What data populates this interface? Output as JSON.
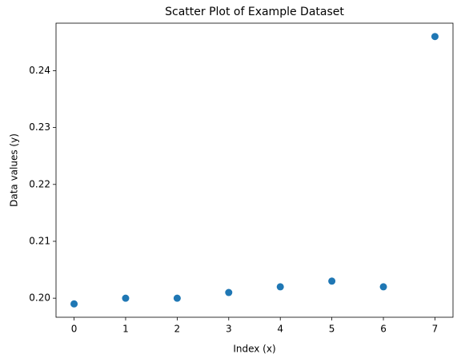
{
  "chart_data": {
    "type": "scatter",
    "title": "Scatter Plot of Example Dataset",
    "x_label": "Index (x)",
    "y_label": "Data values (y)",
    "x": [
      0,
      1,
      2,
      3,
      4,
      5,
      6,
      7
    ],
    "values": [
      0.199,
      0.2,
      0.2,
      0.201,
      0.202,
      0.203,
      0.202,
      0.246
    ],
    "color": "#1f77b4",
    "xlim": [
      -0.35,
      7.35
    ],
    "ylim": [
      0.19665,
      0.24835
    ],
    "xticks": [
      0,
      1,
      2,
      3,
      4,
      5,
      6,
      7
    ],
    "yticks": [
      {
        "value": 0.2,
        "label": "0.20"
      },
      {
        "value": 0.21,
        "label": "0.21"
      },
      {
        "value": 0.22,
        "label": "0.22"
      },
      {
        "value": 0.23,
        "label": "0.23"
      },
      {
        "value": 0.24,
        "label": "0.24"
      }
    ],
    "grid": false
  }
}
